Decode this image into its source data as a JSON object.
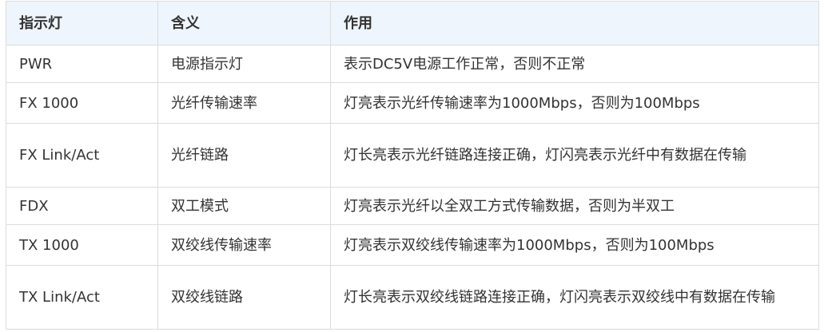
{
  "table": {
    "headers": [
      "指示灯",
      "含义",
      "作用"
    ],
    "rows": [
      [
        "PWR",
        "电源指示灯",
        "表示DC5V电源工作正常，否则不正常"
      ],
      [
        "FX 1000",
        "光纤传输速率",
        "灯亮表示光纤传输速率为1000Mbps，否则为100Mbps"
      ],
      [
        "FX Link/Act",
        "光纤链路",
        "灯长亮表示光纤链路连接正确，灯闪亮表示光纤中有数据在传输"
      ],
      [
        "FDX",
        "双工模式",
        "灯亮表示光纤以全双工方式传输数据，否则为半双工"
      ],
      [
        "TX 1000",
        "双绞线传输速率",
        "灯亮表示双绞线传输速率为1000Mbps，否则为100Mbps"
      ],
      [
        "TX Link/Act",
        "双绞线链路",
        "灯长亮表示双绞线链路连接正确，灯闪亮表示双绞线中有数据在传输"
      ]
    ]
  }
}
